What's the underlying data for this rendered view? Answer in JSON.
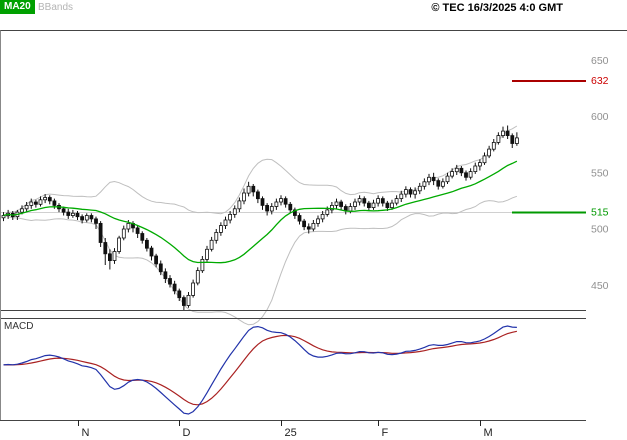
{
  "header": {
    "ma20_label": "MA20",
    "bbands_label": "BBands",
    "copyright": "© TEC 16/3/2025 4:0 GMT"
  },
  "macd_panel": {
    "label": "MACD"
  },
  "price_axis": {
    "labels": [
      {
        "text": "650",
        "value": 650,
        "color": "#909090"
      },
      {
        "text": "632",
        "value": 632,
        "color": "#cc0000"
      },
      {
        "text": "600",
        "value": 600,
        "color": "#909090"
      },
      {
        "text": "550",
        "value": 550,
        "color": "#909090"
      },
      {
        "text": "515",
        "value": 515,
        "color": "#009900"
      },
      {
        "text": "500",
        "value": 500,
        "color": "#909090"
      },
      {
        "text": "450",
        "value": 450,
        "color": "#909090"
      }
    ]
  },
  "levels": {
    "resistance": {
      "value": 632,
      "color": "#aa0000"
    },
    "support": {
      "value": 515,
      "color": "#009900"
    }
  },
  "x_axis": {
    "color": "#222222",
    "ticks": [
      {
        "label": "N",
        "index": 16
      },
      {
        "label": "D",
        "index": 38
      },
      {
        "label": "25",
        "index": 60
      },
      {
        "label": "F",
        "index": 81
      },
      {
        "label": "M",
        "index": 103
      }
    ]
  },
  "chart_data": {
    "type": "candlestick",
    "price_range": [
      428,
      668
    ],
    "candle_color": "#111111",
    "grid_color": "#d0d0d0",
    "frame_color": "#444444",
    "overlays": [
      {
        "name": "MA20",
        "period": 20,
        "color": "#00aa00"
      },
      {
        "name": "BBands",
        "period": 20,
        "stddev": 2,
        "color": "#bfbfbf"
      }
    ],
    "indicator": {
      "name": "MACD",
      "fast": 12,
      "slow": 26,
      "signal": 9,
      "line_color": "#2233aa",
      "signal_color": "#aa2222"
    },
    "candles": [
      [
        510,
        515,
        507,
        512
      ],
      [
        512,
        517,
        509,
        514
      ],
      [
        514,
        516,
        508,
        511
      ],
      [
        511,
        517,
        508,
        515
      ],
      [
        515,
        521,
        513,
        518
      ],
      [
        518,
        524,
        515,
        521
      ],
      [
        521,
        527,
        518,
        524
      ],
      [
        524,
        526,
        519,
        522
      ],
      [
        522,
        529,
        520,
        526
      ],
      [
        526,
        531,
        523,
        528
      ],
      [
        528,
        530,
        522,
        525
      ],
      [
        525,
        527,
        518,
        521
      ],
      [
        521,
        523,
        515,
        518
      ],
      [
        518,
        520,
        512,
        515
      ],
      [
        515,
        518,
        509,
        512
      ],
      [
        512,
        517,
        510,
        514
      ],
      [
        514,
        516,
        508,
        511
      ],
      [
        511,
        513,
        505,
        508
      ],
      [
        508,
        514,
        506,
        512
      ],
      [
        512,
        514,
        506,
        509
      ],
      [
        509,
        511,
        500,
        505
      ],
      [
        505,
        507,
        484,
        488
      ],
      [
        488,
        492,
        468,
        478
      ],
      [
        478,
        482,
        464,
        472
      ],
      [
        472,
        483,
        469,
        480
      ],
      [
        480,
        494,
        478,
        492
      ],
      [
        492,
        503,
        490,
        500
      ],
      [
        500,
        508,
        497,
        505
      ],
      [
        505,
        507,
        497,
        501
      ],
      [
        501,
        503,
        492,
        496
      ],
      [
        496,
        498,
        487,
        490
      ],
      [
        490,
        492,
        480,
        483
      ],
      [
        483,
        485,
        472,
        476
      ],
      [
        476,
        478,
        466,
        469
      ],
      [
        469,
        472,
        459,
        462
      ],
      [
        462,
        465,
        452,
        456
      ],
      [
        456,
        459,
        448,
        451
      ],
      [
        451,
        454,
        442,
        445
      ],
      [
        445,
        447,
        436,
        439
      ],
      [
        439,
        441,
        428,
        432
      ],
      [
        432,
        444,
        430,
        441
      ],
      [
        441,
        455,
        439,
        452
      ],
      [
        452,
        466,
        450,
        463
      ],
      [
        463,
        476,
        461,
        473
      ],
      [
        473,
        485,
        471,
        482
      ],
      [
        482,
        493,
        480,
        490
      ],
      [
        490,
        500,
        487,
        497
      ],
      [
        497,
        506,
        494,
        503
      ],
      [
        503,
        511,
        500,
        508
      ],
      [
        508,
        516,
        505,
        513
      ],
      [
        513,
        521,
        510,
        518
      ],
      [
        518,
        528,
        515,
        525
      ],
      [
        525,
        536,
        522,
        532
      ],
      [
        532,
        542,
        529,
        538
      ],
      [
        538,
        540,
        529,
        533
      ],
      [
        533,
        535,
        523,
        527
      ],
      [
        527,
        529,
        517,
        521
      ],
      [
        521,
        523,
        512,
        516
      ],
      [
        516,
        523,
        513,
        520
      ],
      [
        520,
        527,
        517,
        524
      ],
      [
        524,
        530,
        521,
        527
      ],
      [
        527,
        529,
        519,
        522
      ],
      [
        522,
        524,
        514,
        517
      ],
      [
        517,
        519,
        509,
        512
      ],
      [
        512,
        514,
        504,
        507
      ],
      [
        507,
        509,
        499,
        502
      ],
      [
        502,
        505,
        496,
        500
      ],
      [
        500,
        508,
        498,
        505
      ],
      [
        505,
        512,
        502,
        509
      ],
      [
        509,
        516,
        506,
        513
      ],
      [
        513,
        520,
        511,
        517
      ],
      [
        517,
        524,
        514,
        521
      ],
      [
        521,
        527,
        518,
        524
      ],
      [
        524,
        526,
        517,
        520
      ],
      [
        520,
        522,
        513,
        516
      ],
      [
        516,
        523,
        514,
        520
      ],
      [
        520,
        527,
        517,
        524
      ],
      [
        524,
        530,
        521,
        527
      ],
      [
        527,
        529,
        520,
        523
      ],
      [
        523,
        525,
        516,
        519
      ],
      [
        519,
        526,
        517,
        523
      ],
      [
        523,
        530,
        520,
        527
      ],
      [
        527,
        529,
        520,
        523
      ],
      [
        523,
        525,
        516,
        519
      ],
      [
        519,
        526,
        517,
        523
      ],
      [
        523,
        530,
        521,
        527
      ],
      [
        527,
        534,
        524,
        531
      ],
      [
        531,
        538,
        528,
        535
      ],
      [
        535,
        537,
        528,
        531
      ],
      [
        531,
        537,
        527,
        534
      ],
      [
        534,
        541,
        531,
        538
      ],
      [
        538,
        545,
        535,
        542
      ],
      [
        542,
        549,
        539,
        546
      ],
      [
        546,
        550,
        539,
        543
      ],
      [
        543,
        545,
        535,
        538
      ],
      [
        538,
        545,
        536,
        542
      ],
      [
        542,
        550,
        540,
        547
      ],
      [
        547,
        554,
        545,
        551
      ],
      [
        551,
        557,
        548,
        554
      ],
      [
        554,
        556,
        547,
        550
      ],
      [
        550,
        552,
        543,
        546
      ],
      [
        546,
        554,
        544,
        551
      ],
      [
        551,
        559,
        549,
        556
      ],
      [
        556,
        562,
        552,
        559
      ],
      [
        559,
        568,
        557,
        565
      ],
      [
        565,
        574,
        563,
        571
      ],
      [
        571,
        580,
        569,
        577
      ],
      [
        577,
        586,
        575,
        583
      ],
      [
        583,
        591,
        581,
        587
      ],
      [
        587,
        592,
        580,
        583
      ],
      [
        583,
        585,
        572,
        576
      ],
      [
        576,
        586,
        574,
        581
      ]
    ]
  }
}
